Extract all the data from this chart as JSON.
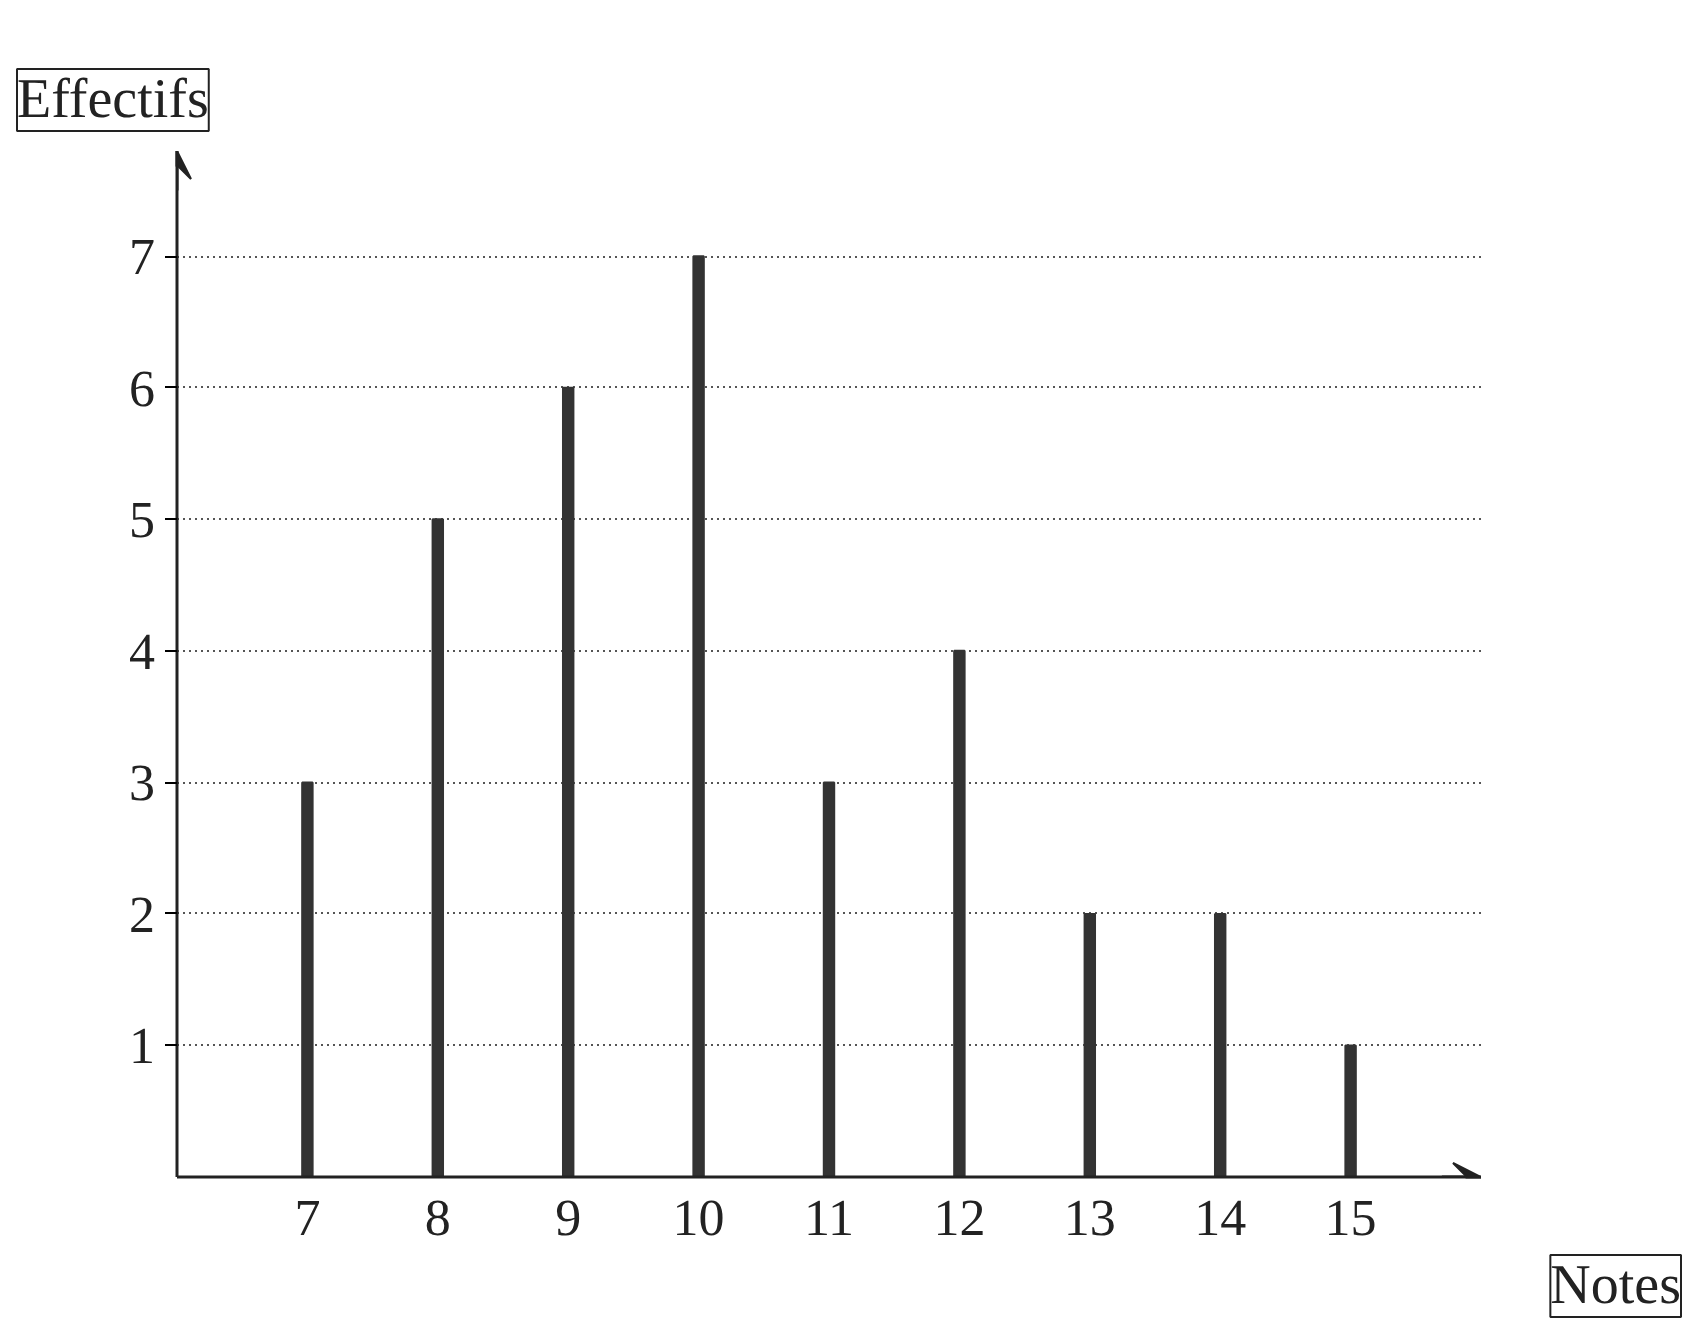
{
  "chart_data": {
    "type": "bar",
    "xlabel": "Notes",
    "ylabel": "Effectifs",
    "x": [
      7,
      8,
      9,
      10,
      11,
      12,
      13,
      14,
      15
    ],
    "values": [
      3,
      5,
      6,
      7,
      3,
      4,
      2,
      2,
      1
    ],
    "color": "#333333",
    "xlim": [
      6,
      16
    ],
    "ylim": [
      0,
      7.8
    ],
    "xticks": [
      7,
      8,
      9,
      10,
      11,
      12,
      13,
      14,
      15
    ],
    "yticks": [
      1,
      2,
      3,
      4,
      5,
      6,
      7
    ],
    "grid": "y"
  }
}
